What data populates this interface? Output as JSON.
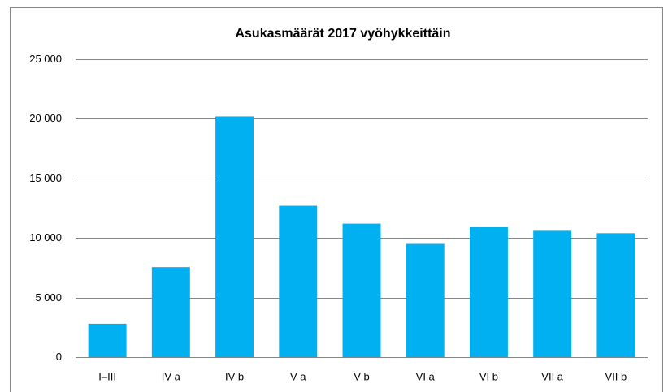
{
  "chart_data": {
    "type": "bar",
    "title": "Asukasmäärät 2017 vyöhykkeittäin",
    "categories": [
      "I–III",
      "IV a",
      "IV b",
      "V a",
      "V b",
      "VI a",
      "VI b",
      "VII a",
      "VII b"
    ],
    "values": [
      2800,
      7550,
      20200,
      12700,
      11200,
      9500,
      10900,
      10600,
      10400
    ],
    "color": "#00b0f0",
    "ylim": [
      0,
      25000
    ],
    "yticks": [
      0,
      {
        "value": 5000,
        "label": "5 000"
      },
      {
        "value": 10000,
        "label": "10 000"
      },
      {
        "value": 15000,
        "label": "15 000"
      },
      {
        "value": 20000,
        "label": "20 000"
      },
      {
        "value": 25000,
        "label": "25 000"
      }
    ],
    "grid": true
  }
}
